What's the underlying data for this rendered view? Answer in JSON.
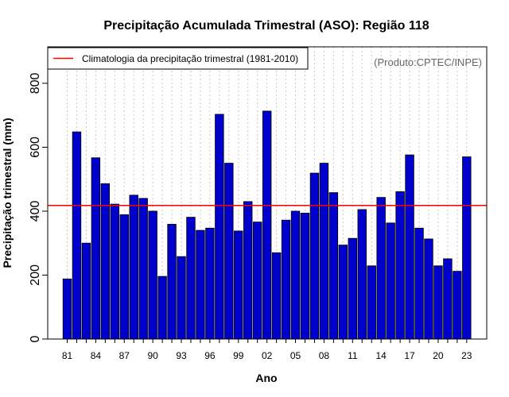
{
  "chart_data": {
    "type": "bar",
    "title": "Precipitação Acumulada Trimestral (ASO): Região 118",
    "xlabel": "Ano",
    "ylabel": "Precipitação trimestral (mm)",
    "source": "(Produto:CPTEC/INPE)",
    "legend": {
      "label": "Climatologia da precipitação trimestral (1981-2010)",
      "placement": "top-left"
    },
    "ylim": [
      0,
      900
    ],
    "yticks": [
      0,
      200,
      400,
      600,
      800
    ],
    "grid": "vertical dotted",
    "categories": [
      1981,
      1982,
      1983,
      1984,
      1985,
      1986,
      1987,
      1988,
      1989,
      1990,
      1991,
      1992,
      1993,
      1994,
      1995,
      1996,
      1997,
      1998,
      1999,
      2000,
      2001,
      2002,
      2003,
      2004,
      2005,
      2006,
      2007,
      2008,
      2009,
      2010,
      2011,
      2012,
      2013,
      2014,
      2015,
      2016,
      2017,
      2018,
      2019,
      2020,
      2021,
      2022,
      2023
    ],
    "xtick_labels": [
      {
        "year": 1981,
        "label": "81"
      },
      {
        "year": 1984,
        "label": "84"
      },
      {
        "year": 1987,
        "label": "87"
      },
      {
        "year": 1990,
        "label": "90"
      },
      {
        "year": 1993,
        "label": "93"
      },
      {
        "year": 1996,
        "label": "96"
      },
      {
        "year": 1999,
        "label": "99"
      },
      {
        "year": 2002,
        "label": "02"
      },
      {
        "year": 2005,
        "label": "05"
      },
      {
        "year": 2008,
        "label": "08"
      },
      {
        "year": 2011,
        "label": "11"
      },
      {
        "year": 2014,
        "label": "14"
      },
      {
        "year": 2017,
        "label": "17"
      },
      {
        "year": 2020,
        "label": "20"
      },
      {
        "year": 2023,
        "label": "23"
      }
    ],
    "values": [
      188,
      648,
      300,
      567,
      486,
      422,
      389,
      450,
      440,
      400,
      196,
      359,
      258,
      381,
      340,
      347,
      703,
      550,
      338,
      430,
      366,
      713,
      270,
      372,
      400,
      394,
      519,
      550,
      458,
      294,
      315,
      405,
      229,
      443,
      363,
      461,
      576,
      347,
      313,
      229,
      251,
      212,
      570
    ],
    "climatology": 418,
    "colors": {
      "bar_fill": "#0000CD",
      "bar_stroke": "#000000",
      "climatology_line": "#FF0000",
      "grid": "#C8C8C8",
      "source": "#666666"
    }
  }
}
